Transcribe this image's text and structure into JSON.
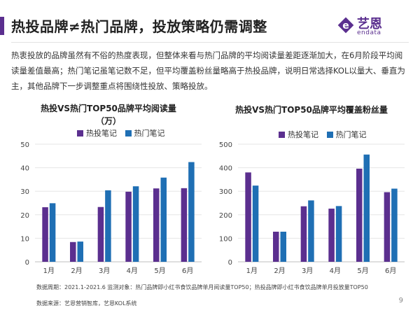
{
  "header": {
    "title": "热投品牌≠热门品牌，投放策略仍需调整",
    "accent_color": "#5b2f8f"
  },
  "logo": {
    "name_cn": "艺恩",
    "name_en": "endata"
  },
  "summary": "热衷投放的品牌虽然有不俗的热度表现，但整体来看与热门品牌的平均阅读量差距逐渐加大，在6月阶段平均阅读量差值最高；热门笔记虽笔记数不足，但平均覆盖粉丝量略高于热投品牌，说明日常选择KOL以量大、垂直为主，其他品牌下一步调整重点将围绕性投放、策略投放。",
  "chart_data": [
    {
      "type": "bar",
      "title_line1": "热投VS热门TOP50品牌平均阅读量",
      "title_line2": "（万）",
      "categories": [
        "1月",
        "2月",
        "3月",
        "4月",
        "5月",
        "6月"
      ],
      "series": [
        {
          "name": "热投笔记",
          "color": "#5b2f8f",
          "values": [
            23.2,
            8.4,
            23.3,
            29.8,
            31.2,
            31.3
          ]
        },
        {
          "name": "热门笔记",
          "color": "#1f6fb4",
          "values": [
            24.9,
            8.6,
            30.4,
            32.1,
            35.8,
            42.4
          ]
        }
      ],
      "ylim": [
        0,
        50
      ],
      "yticks": [
        0,
        10,
        20,
        30,
        40,
        50
      ],
      "grid": true
    },
    {
      "type": "bar",
      "title_line1": "热投VS热门TOP50品牌平均覆盖粉丝量",
      "categories": [
        "1月",
        "2月",
        "3月",
        "4月",
        "5月",
        "6月"
      ],
      "series": [
        {
          "name": "热投笔记",
          "color": "#5b2f8f",
          "values": [
            380,
            128,
            236,
            226,
            396,
            296
          ]
        },
        {
          "name": "热门笔记",
          "color": "#1f6fb4",
          "values": [
            324,
            128,
            261,
            237,
            456,
            311
          ]
        }
      ],
      "ylim": [
        0,
        500
      ],
      "yticks": [
        0,
        100,
        200,
        300,
        400,
        500
      ],
      "grid": true
    }
  ],
  "footer": {
    "line1": "数据周期：2021.1-2021.6      监测对象：热门品牌即小红书食饮品牌单月阅读量TOP50；热投品牌即小红书食饮品牌单月投放量TOP50",
    "line2": "数据来源：艺恩营销智库，艺恩KOL系统"
  },
  "page_number": "9"
}
